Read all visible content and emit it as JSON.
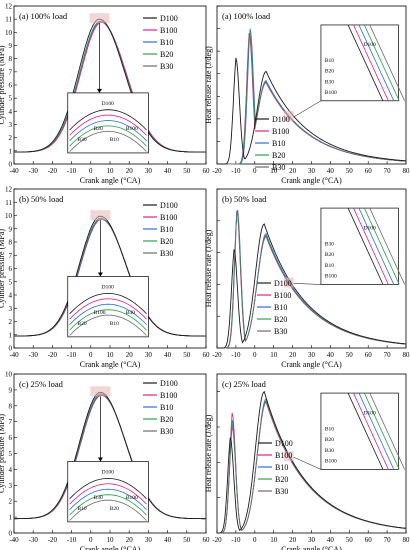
{
  "figure": {
    "series_names": [
      "D100",
      "B100",
      "B10",
      "B20",
      "B30"
    ],
    "series_colors": [
      "#1a1a1a",
      "#e0218a",
      "#2f6fd6",
      "#2e9e4f",
      "#6b6b6b"
    ]
  },
  "chart_data": [
    {
      "id": "p100",
      "type": "line",
      "title": "(a) 100% load",
      "xlabel": "Crank angle (°CA)",
      "ylabel": "Cylinder pressure (MPa)",
      "xlim": [
        -40,
        60
      ],
      "ylim": [
        0,
        12
      ],
      "x_ticks": [
        -40,
        -30,
        -20,
        -10,
        0,
        10,
        20,
        30,
        40,
        50,
        60
      ],
      "y_ticks": [
        0,
        1,
        2,
        3,
        4,
        5,
        6,
        7,
        8,
        9,
        10,
        11,
        12
      ],
      "series": [
        {
          "name": "D100",
          "peak_x": 4.5,
          "peak_y": 11.0
        },
        {
          "name": "B100",
          "peak_x": 5.5,
          "peak_y": 10.75
        },
        {
          "name": "B10",
          "peak_x": 5.0,
          "peak_y": 10.85
        },
        {
          "name": "B20",
          "peak_x": 5.0,
          "peak_y": 10.8
        },
        {
          "name": "B30",
          "peak_x": 5.2,
          "peak_y": 10.78
        }
      ],
      "inset_labels": [
        "D100",
        "B30",
        "B20",
        "B10",
        "B100"
      ]
    },
    {
      "id": "h100",
      "type": "line",
      "title": "(a) 100% load",
      "xlabel": "Crank angle (°CA)",
      "ylabel": "Heat release rate (J/deg)",
      "xlim": [
        -20,
        80
      ],
      "ylim": [
        0,
        70
      ],
      "x_ticks": [
        -20,
        -10,
        0,
        10,
        20,
        30,
        40,
        50,
        60,
        70,
        80
      ],
      "series": [
        {
          "name": "D100",
          "premix_peak": [
            -10,
            47
          ],
          "diff_peak": [
            6,
            41
          ],
          "valley": [
            -2.5,
            19
          ]
        },
        {
          "name": "B100",
          "premix_peak": [
            -3,
            58
          ],
          "diff_peak": [
            6,
            36
          ],
          "valley": [
            1.5,
            31
          ]
        },
        {
          "name": "B10",
          "premix_peak": [
            -2.5,
            60
          ],
          "diff_peak": [
            6,
            37
          ],
          "valley": [
            2.0,
            31
          ]
        },
        {
          "name": "B20",
          "premix_peak": [
            -2.8,
            59
          ],
          "diff_peak": [
            6,
            36.5
          ],
          "valley": [
            1.8,
            31
          ]
        },
        {
          "name": "B30",
          "premix_peak": [
            -2.9,
            58.5
          ],
          "diff_peak": [
            6,
            36.3
          ],
          "valley": [
            1.7,
            31
          ]
        }
      ],
      "inset_labels": [
        "D100",
        "B10",
        "B20",
        "B30",
        "B100"
      ]
    },
    {
      "id": "p50",
      "type": "line",
      "title": "(b) 50% load",
      "xlabel": "Crank angle (°CA)",
      "ylabel": "Cylinder pressure (MPa)",
      "xlim": [
        -40,
        60
      ],
      "ylim": [
        0,
        12
      ],
      "x_ticks": [
        -40,
        -30,
        -20,
        -10,
        0,
        10,
        20,
        30,
        40,
        50,
        60
      ],
      "y_ticks": [
        0,
        1,
        2,
        3,
        4,
        5,
        6,
        7,
        8,
        9,
        10,
        11,
        12
      ],
      "series": [
        {
          "name": "D100",
          "peak_x": 5.0,
          "peak_y": 9.95
        },
        {
          "name": "B100",
          "peak_x": 5.5,
          "peak_y": 9.7
        },
        {
          "name": "B10",
          "peak_x": 5.2,
          "peak_y": 9.8
        },
        {
          "name": "B20",
          "peak_x": 5.3,
          "peak_y": 9.75
        },
        {
          "name": "B30",
          "peak_x": 5.4,
          "peak_y": 9.72
        }
      ],
      "inset_labels": [
        "D100",
        "B20",
        "B100",
        "B10",
        "B30"
      ]
    },
    {
      "id": "h50",
      "type": "line",
      "title": "(b) 50% load",
      "xlabel": "Crank angle (°CA)",
      "ylabel": "Heat release rate (J/deg)",
      "xlim": [
        -20,
        80
      ],
      "ylim": [
        0,
        50
      ],
      "x_ticks": [
        -20,
        -10,
        0,
        10,
        20,
        30,
        40,
        50,
        60,
        70,
        80
      ],
      "series": [
        {
          "name": "D100",
          "premix_peak": [
            -11,
            31
          ],
          "diff_peak": [
            5,
            39
          ],
          "valley": [
            -6,
            17
          ]
        },
        {
          "name": "B100",
          "premix_peak": [
            -9.5,
            43
          ],
          "diff_peak": [
            6,
            35
          ],
          "valley": [
            -3,
            25
          ]
        },
        {
          "name": "B10",
          "premix_peak": [
            -9.3,
            44
          ],
          "diff_peak": [
            6,
            36
          ],
          "valley": [
            -3,
            25
          ]
        },
        {
          "name": "B20",
          "premix_peak": [
            -9.4,
            43.5
          ],
          "diff_peak": [
            6,
            35.5
          ],
          "valley": [
            -3,
            25
          ]
        },
        {
          "name": "B30",
          "premix_peak": [
            -9.5,
            43.2
          ],
          "diff_peak": [
            6,
            35.2
          ],
          "valley": [
            -3,
            25
          ]
        }
      ],
      "inset_labels": [
        "D100",
        "B30",
        "B20",
        "B10",
        "B100"
      ]
    },
    {
      "id": "p25",
      "type": "line",
      "title": "(c) 25% load",
      "xlabel": "Crank angle (°CA)",
      "ylabel": "Cylinder pressure (MPa)",
      "xlim": [
        -40,
        60
      ],
      "ylim": [
        0,
        10
      ],
      "x_ticks": [
        -40,
        -30,
        -20,
        -10,
        0,
        10,
        20,
        30,
        40,
        50,
        60
      ],
      "y_ticks": [
        0,
        1,
        2,
        3,
        4,
        5,
        6,
        7,
        8,
        9,
        10
      ],
      "series": [
        {
          "name": "D100",
          "peak_x": 5.0,
          "peak_y": 8.85
        },
        {
          "name": "B100",
          "peak_x": 5.5,
          "peak_y": 8.65
        },
        {
          "name": "B10",
          "peak_x": 5.2,
          "peak_y": 8.75
        },
        {
          "name": "B20",
          "peak_x": 5.3,
          "peak_y": 8.7
        },
        {
          "name": "B30",
          "peak_x": 5.4,
          "peak_y": 8.68
        }
      ],
      "inset_labels": [
        "D100",
        "B10",
        "B30",
        "B20",
        "B100"
      ]
    },
    {
      "id": "h25",
      "type": "line",
      "title": "(c) 25% load",
      "xlabel": "Crank angle (°CA)",
      "ylabel": "Heat release rate (J/deg)",
      "xlim": [
        -20,
        80
      ],
      "ylim": [
        0,
        45
      ],
      "x_ticks": [
        -20,
        -10,
        0,
        10,
        20,
        30,
        40,
        50,
        60,
        70,
        80
      ],
      "series": [
        {
          "name": "D100",
          "premix_peak": [
            -13,
            27
          ],
          "diff_peak": [
            5,
            40
          ],
          "valley": [
            -8,
            21
          ]
        },
        {
          "name": "B100",
          "premix_peak": [
            -12,
            34
          ],
          "diff_peak": [
            6,
            37
          ],
          "valley": [
            -6.5,
            20
          ]
        },
        {
          "name": "B10",
          "premix_peak": [
            -12,
            32
          ],
          "diff_peak": [
            6,
            38
          ],
          "valley": [
            -6.5,
            20.5
          ]
        },
        {
          "name": "B20",
          "premix_peak": [
            -12,
            31
          ],
          "diff_peak": [
            6,
            37.5
          ],
          "valley": [
            -6.5,
            20.3
          ]
        },
        {
          "name": "B30",
          "premix_peak": [
            -12,
            30
          ],
          "diff_peak": [
            6,
            37.2
          ],
          "valley": [
            -6.5,
            20.2
          ]
        }
      ],
      "inset_labels": [
        "D100",
        "B10",
        "B20",
        "B30",
        "B100"
      ]
    }
  ]
}
